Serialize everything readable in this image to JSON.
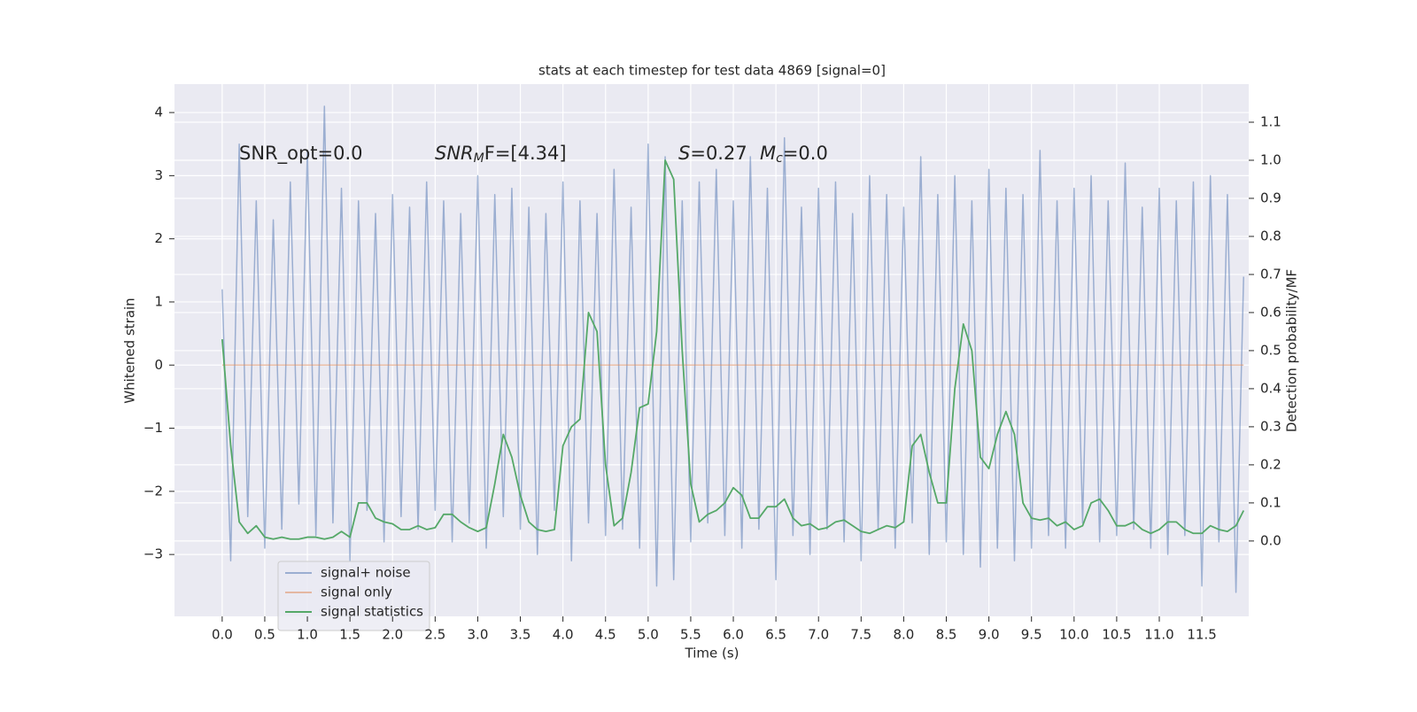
{
  "chart_data": {
    "type": "line",
    "title": "stats at each timestep for test data 4869 [signal=0]",
    "xlabel": "Time (s)",
    "ylabel": "Whitened strain",
    "y2label": "Detection probability/MF",
    "annotations": {
      "snr_opt": "SNR_opt=0.0",
      "snr_mf": {
        "main": "SNR",
        "sub": "M",
        "rest": "F=[4.34]"
      },
      "s": {
        "main": "S",
        "rest": "=0.27"
      },
      "mc": {
        "main": "M",
        "sub": "c",
        "rest": "=0.0"
      }
    },
    "grid": true,
    "legend": "lower left",
    "xlim": [
      -0.56,
      12.05
    ],
    "ylim": [
      -3.98,
      4.45
    ],
    "y2lim": [
      -0.198,
      1.2
    ],
    "xticks": [
      {
        "value": 0,
        "label": "0.0"
      },
      {
        "value": 0.5,
        "label": "0.5"
      },
      {
        "value": 1,
        "label": "1.0"
      },
      {
        "value": 1.5,
        "label": "1.5"
      },
      {
        "value": 2,
        "label": "2.0"
      },
      {
        "value": 2.5,
        "label": "2.5"
      },
      {
        "value": 3,
        "label": "3.0"
      },
      {
        "value": 3.5,
        "label": "3.5"
      },
      {
        "value": 4,
        "label": "4.0"
      },
      {
        "value": 4.5,
        "label": "4.5"
      },
      {
        "value": 5,
        "label": "5.0"
      },
      {
        "value": 5.5,
        "label": "5.5"
      },
      {
        "value": 6,
        "label": "6.0"
      },
      {
        "value": 6.5,
        "label": "6.5"
      },
      {
        "value": 7,
        "label": "7.0"
      },
      {
        "value": 7.5,
        "label": "7.5"
      },
      {
        "value": 8,
        "label": "8.0"
      },
      {
        "value": 8.5,
        "label": "8.5"
      },
      {
        "value": 9,
        "label": "9.0"
      },
      {
        "value": 9.5,
        "label": "9.5"
      },
      {
        "value": 10,
        "label": "10.0"
      },
      {
        "value": 10.5,
        "label": "10.5"
      },
      {
        "value": 11,
        "label": "11.0"
      },
      {
        "value": 11.5,
        "label": "11.5"
      }
    ],
    "yticks": [
      {
        "value": -3,
        "label": "−3"
      },
      {
        "value": -2,
        "label": "−2"
      },
      {
        "value": -1,
        "label": "−1"
      },
      0,
      1,
      2,
      3,
      4
    ],
    "y2ticks": [
      {
        "value": 0,
        "label": "0.0"
      },
      {
        "value": 0.1,
        "label": "0.1"
      },
      {
        "value": 0.2,
        "label": "0.2"
      },
      {
        "value": 0.3,
        "label": "0.3"
      },
      {
        "value": 0.4,
        "label": "0.4"
      },
      {
        "value": 0.5,
        "label": "0.5"
      },
      {
        "value": 0.6,
        "label": "0.6"
      },
      {
        "value": 0.7,
        "label": "0.7"
      },
      {
        "value": 0.8,
        "label": "0.8"
      },
      {
        "value": 0.9,
        "label": "0.9"
      },
      {
        "value": 1,
        "label": "1.0"
      },
      {
        "value": 1.1,
        "label": "1.1"
      }
    ],
    "x": [
      0,
      0.1,
      0.2,
      0.3,
      0.4,
      0.5,
      0.6,
      0.7,
      0.8,
      0.9,
      1,
      1.1,
      1.2,
      1.3,
      1.4,
      1.5,
      1.6,
      1.7,
      1.8,
      1.9,
      2,
      2.1,
      2.2,
      2.3,
      2.4,
      2.5,
      2.6,
      2.7,
      2.8,
      2.9,
      3,
      3.1,
      3.2,
      3.3,
      3.4,
      3.5,
      3.6,
      3.7,
      3.8,
      3.9,
      4,
      4.1,
      4.2,
      4.3,
      4.4,
      4.5,
      4.6,
      4.7,
      4.8,
      4.9,
      5,
      5.1,
      5.2,
      5.3,
      5.4,
      5.5,
      5.6,
      5.7,
      5.8,
      5.9,
      6,
      6.1,
      6.2,
      6.3,
      6.4,
      6.5,
      6.6,
      6.7,
      6.8,
      6.9,
      7,
      7.1,
      7.2,
      7.3,
      7.4,
      7.5,
      7.6,
      7.7,
      7.8,
      7.9,
      8,
      8.1,
      8.2,
      8.3,
      8.4,
      8.5,
      8.6,
      8.7,
      8.8,
      8.9,
      9,
      9.1,
      9.2,
      9.3,
      9.4,
      9.5,
      9.6,
      9.7,
      9.8,
      9.9,
      10,
      10.1,
      10.2,
      10.3,
      10.4,
      10.5,
      10.6,
      10.7,
      10.8,
      10.9,
      11,
      11.1,
      11.2,
      11.3,
      11.4,
      11.5,
      11.6,
      11.7,
      11.8,
      11.9,
      11.99
    ],
    "series": [
      {
        "name": "signal+ noise",
        "color": "#4c72b0",
        "alpha": 0.5,
        "axis": "y",
        "values": [
          1.2,
          -3.1,
          3.5,
          -2.4,
          2.6,
          -2.9,
          2.3,
          -2.6,
          2.9,
          -2.2,
          3.4,
          -2.7,
          4.1,
          -2.5,
          2.8,
          -3.1,
          2.6,
          -2.3,
          2.4,
          -2.8,
          2.7,
          -2.4,
          2.5,
          -2.6,
          2.9,
          -2.3,
          2.6,
          -2.8,
          2.4,
          -2.5,
          3.0,
          -2.9,
          2.7,
          -2.4,
          2.8,
          -2.6,
          2.5,
          -3.0,
          2.4,
          -2.3,
          2.9,
          -3.1,
          2.6,
          -2.5,
          2.4,
          -2.7,
          3.1,
          -2.6,
          2.5,
          -2.9,
          3.5,
          -3.5,
          3.3,
          -3.4,
          2.6,
          -2.8,
          2.9,
          -2.5,
          3.1,
          -2.7,
          2.6,
          -2.9,
          3.3,
          -2.6,
          2.8,
          -3.4,
          3.6,
          -2.7,
          2.5,
          -3.0,
          2.8,
          -2.6,
          2.9,
          -2.8,
          2.4,
          -3.1,
          3.0,
          -2.6,
          2.7,
          -2.9,
          2.5,
          -2.5,
          3.3,
          -3.0,
          2.7,
          -2.8,
          3.0,
          -3.0,
          2.6,
          -3.2,
          3.1,
          -2.9,
          2.8,
          -3.1,
          2.7,
          -2.9,
          3.4,
          -2.7,
          2.6,
          -2.9,
          2.8,
          -2.5,
          3.0,
          -2.8,
          2.6,
          -2.7,
          3.2,
          -2.6,
          2.5,
          -2.9,
          2.8,
          -3.0,
          2.6,
          -2.7,
          2.9,
          -3.5,
          3.0,
          -2.8,
          2.7,
          -3.6,
          1.4
        ]
      },
      {
        "name": "signal only",
        "color": "#dd8452",
        "alpha": 0.5,
        "axis": "y",
        "values": [
          0,
          0,
          0,
          0,
          0,
          0,
          0,
          0,
          0,
          0,
          0,
          0,
          0,
          0,
          0,
          0,
          0,
          0,
          0,
          0,
          0,
          0,
          0,
          0,
          0,
          0,
          0,
          0,
          0,
          0,
          0,
          0,
          0,
          0,
          0,
          0,
          0,
          0,
          0,
          0,
          0,
          0,
          0,
          0,
          0,
          0,
          0,
          0,
          0,
          0,
          0,
          0,
          0,
          0,
          0,
          0,
          0,
          0,
          0,
          0,
          0,
          0,
          0,
          0,
          0,
          0,
          0,
          0,
          0,
          0,
          0,
          0,
          0,
          0,
          0,
          0,
          0,
          0,
          0,
          0,
          0,
          0,
          0,
          0,
          0,
          0,
          0,
          0,
          0,
          0,
          0,
          0,
          0,
          0,
          0,
          0,
          0,
          0,
          0,
          0,
          0,
          0,
          0,
          0,
          0,
          0,
          0,
          0,
          0,
          0,
          0,
          0,
          0,
          0,
          0,
          0,
          0,
          0,
          0,
          0,
          0
        ]
      },
      {
        "name": "signal statistics",
        "color": "#55a868",
        "alpha": 1,
        "axis": "y2",
        "values": [
          0.53,
          0.25,
          0.05,
          0.02,
          0.04,
          0.01,
          0.005,
          0.01,
          0.005,
          0.005,
          0.01,
          0.01,
          0.005,
          0.01,
          0.025,
          0.01,
          0.1,
          0.1,
          0.06,
          0.05,
          0.045,
          0.03,
          0.03,
          0.04,
          0.03,
          0.035,
          0.07,
          0.07,
          0.05,
          0.035,
          0.025,
          0.035,
          0.15,
          0.28,
          0.22,
          0.12,
          0.05,
          0.03,
          0.025,
          0.03,
          0.25,
          0.3,
          0.32,
          0.6,
          0.55,
          0.2,
          0.04,
          0.06,
          0.18,
          0.35,
          0.36,
          0.55,
          1.0,
          0.95,
          0.5,
          0.15,
          0.05,
          0.07,
          0.08,
          0.1,
          0.14,
          0.12,
          0.06,
          0.06,
          0.09,
          0.09,
          0.11,
          0.06,
          0.04,
          0.045,
          0.03,
          0.035,
          0.05,
          0.055,
          0.04,
          0.025,
          0.02,
          0.03,
          0.04,
          0.035,
          0.05,
          0.25,
          0.28,
          0.18,
          0.1,
          0.1,
          0.4,
          0.57,
          0.5,
          0.22,
          0.19,
          0.28,
          0.34,
          0.28,
          0.1,
          0.06,
          0.055,
          0.06,
          0.04,
          0.05,
          0.03,
          0.04,
          0.1,
          0.11,
          0.08,
          0.04,
          0.04,
          0.05,
          0.03,
          0.02,
          0.03,
          0.05,
          0.05,
          0.03,
          0.02,
          0.02,
          0.04,
          0.03,
          0.025,
          0.04,
          0.08
        ]
      }
    ]
  }
}
